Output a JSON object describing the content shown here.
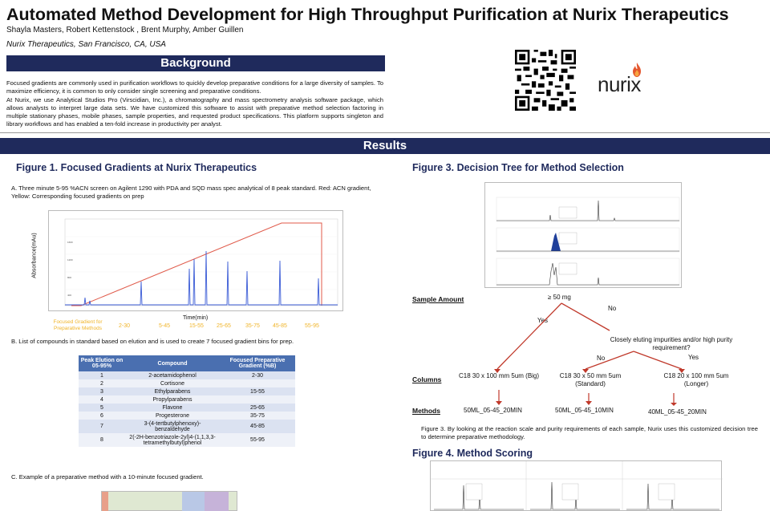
{
  "header": {
    "title": "Automated Method Development for High Throughput Purification at Nurix Therapeutics",
    "authors": "Shayla Masters, Robert Kettenstock , Brent Murphy, Amber Guillen",
    "affiliation": "Nurix Therapeutics, San Francisco, CA, USA",
    "logo_text": "nurix"
  },
  "background": {
    "heading": "Background",
    "p1": "Focused gradients are commonly used in purification workflows to quickly develop preparative conditions for a large diversity of samples. To maximize efficiency, it is common to only consider single screening and preparative conditions.",
    "p2": "At Nurix, we use Analytical Studios Pro (Virscidian, Inc.), a chromatography and mass spectrometry analysis software package, which allows analysts to interpret large data sets. We have customized this software to assist with preparative method selection factoring in multiple stationary phases, mobile phases, sample properties, and requested product specifications. This platform supports singleton and library workflows and has enabled a ten-fold increase in productivity per analyst."
  },
  "results": {
    "heading": "Results"
  },
  "figure1": {
    "title": "Figure 1. Focused Gradients at Nurix Therapeutics",
    "caption_a": "A. Three minute 5-95 %ACN screen on Agilent 1290 with PDA and SQD mass spec analytical of 8 peak standard. Red: ACN gradient, Yellow: Corresponding focused gradients on prep",
    "ylabel": "Absorbance(mAu)",
    "xlabel": "Time(min)",
    "focused_label": "Focused Gradient for Preparative Methods",
    "bins": [
      "2-30",
      "5-45",
      "15-55",
      "25-65",
      "35-75",
      "45-85",
      "55-95"
    ],
    "caption_b": "B. List of compounds in standard based on elution and is used to create 7 focused gradient bins for prep.",
    "caption_c": "C. Example of a preparative method with a 10-minute focused gradient."
  },
  "table": {
    "headers": [
      "Peak Elution on 05-95%",
      "Compound",
      "Focused Preparative Gradient (%B)"
    ],
    "rows": [
      {
        "peak": "1",
        "compound": "2-acetamidophenol",
        "gradient": "2-30"
      },
      {
        "peak": "2",
        "compound": "Cortisone",
        "gradient": ""
      },
      {
        "peak": "3",
        "compound": "Ethylparabens",
        "gradient": "15-55"
      },
      {
        "peak": "4",
        "compound": "Propylparabens",
        "gradient": ""
      },
      {
        "peak": "5",
        "compound": "Flavone",
        "gradient": "25-65"
      },
      {
        "peak": "6",
        "compound": "Progesterone",
        "gradient": "35-75"
      },
      {
        "peak": "7",
        "compound": "3-(4-tertbutylphenoxy)-benzaldehyde",
        "gradient": "45-85"
      },
      {
        "peak": "8",
        "compound": "2(-2H-benzotriazole-2yl)4-(1,1,3,3-tetramethylbutyl)phenol",
        "gradient": "55-95"
      }
    ]
  },
  "figure3": {
    "title": "Figure 3. Decision Tree for Method Selection",
    "sample_amount_label": "Sample Amount",
    "columns_label": "Columns",
    "methods_label": "Methods",
    "threshold": "≥ 50 mg",
    "yes1": "Yes",
    "no1": "No",
    "question": "Closely eluting impurities and/or high purity requirement?",
    "no2": "No",
    "yes2": "Yes",
    "col1": "C18 30 x 100 mm 5um (Big)",
    "col2_line1": "C18 30 x 50 mm 5um",
    "col2_line2": "(Standard)",
    "col3_line1": "C18 20 x 100 mm 5um",
    "col3_line2": "(Longer)",
    "method1": "50ML_05-45_20MIN",
    "method2": "50ML_05-45_10MIN",
    "method3": "40ML_05-45_20MIN",
    "caption": "Figure 3.   By looking at the reaction scale and purity requirements of each sample, Nurix uses this customized decision tree to determine preparative methodology."
  },
  "figure4": {
    "title": "Figure 4. Method Scoring"
  },
  "colors": {
    "band": "#1f2a5c",
    "gradient_red": "#e05a4a",
    "focused_yellow": "#f0b429",
    "peak_blue": "#3a5bd6",
    "tree_red": "#c0392b"
  }
}
